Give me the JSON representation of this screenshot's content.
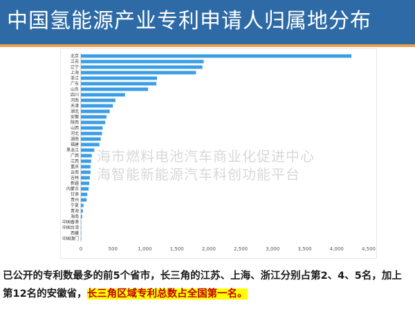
{
  "header": {
    "title": "中国氢能源产业专利申请人归属地分布"
  },
  "watermark": {
    "line1": "海市燃料电池汽车商业化促进中心",
    "line2": "海智能新能源汽车科创功能平台"
  },
  "caption": {
    "text": "已公开的专利数最多的前5个省市，长三角的江苏、上海、浙江分别占第2、4、5名，加上第12名的安徽省，",
    "highlight": "长三角区域专利总数占全国第一名。"
  },
  "colors": {
    "title_bg": "#2e6ba6",
    "accent": "#f0a04b",
    "bar": "#3b9ee4",
    "highlight_text": "#c00000",
    "highlight_bg": "#ffff00"
  },
  "chart_data": {
    "type": "bar",
    "orientation": "horizontal",
    "categories": [
      "北京",
      "江苏",
      "辽宁",
      "上海",
      "浙江",
      "广东",
      "山东",
      "四川",
      "河南",
      "天津",
      "湖北",
      "安徽",
      "陕西",
      "山西",
      "河北",
      "湖南",
      "福建",
      "黑龙江",
      "广西",
      "江西",
      "重庆",
      "云南",
      "吉林",
      "新疆",
      "内蒙古",
      "甘肃",
      "贵州",
      "宁夏",
      "青海",
      "海南",
      "中国香港",
      "中国台湾",
      "西藏",
      "中国澳门"
    ],
    "values": [
      4230,
      1920,
      1900,
      1800,
      1190,
      1180,
      1050,
      690,
      540,
      500,
      450,
      400,
      380,
      340,
      330,
      310,
      290,
      210,
      170,
      160,
      150,
      150,
      140,
      130,
      120,
      100,
      90,
      40,
      30,
      20,
      5,
      5,
      3,
      2
    ],
    "xlim": [
      0,
      4500
    ],
    "xticks": [
      "0",
      "500",
      "1,000",
      "1,500",
      "2,000",
      "2,500",
      "3,000",
      "3,500",
      "4,000",
      "4,500"
    ],
    "grid": false,
    "legend": "none"
  }
}
